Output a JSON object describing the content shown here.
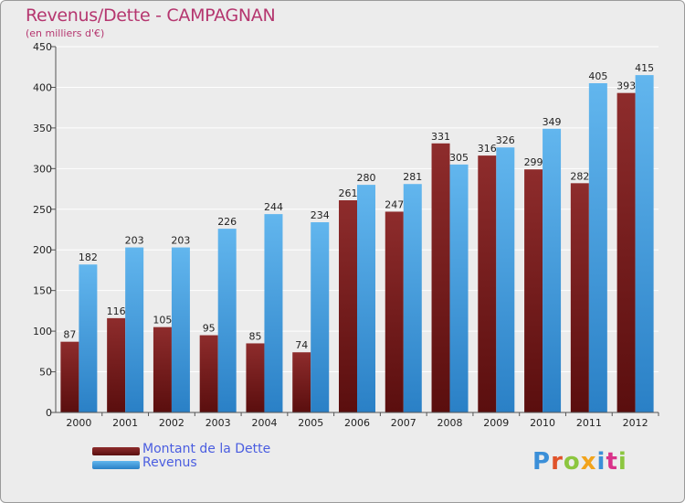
{
  "title": "Revenus/Dette - CAMPAGNAN",
  "subtitle": "(en milliers d'€)",
  "legend": {
    "debt_label": "Montant de la Dette",
    "revenue_label": "Revenus"
  },
  "logo": {
    "text": "Proxiti",
    "letters": [
      {
        "ch": "P",
        "color": "#3b8fd8"
      },
      {
        "ch": "r",
        "color": "#e0532a"
      },
      {
        "ch": "o",
        "color": "#8cc63f"
      },
      {
        "ch": "x",
        "color": "#f2a41c"
      },
      {
        "ch": "i",
        "color": "#3b8fd8"
      },
      {
        "ch": "t",
        "color": "#d9328a"
      },
      {
        "ch": "i",
        "color": "#8cc63f"
      }
    ]
  },
  "colors": {
    "debt_top": "#8e2c2c",
    "debt_bottom": "#5a0e0e",
    "revenue_top": "#62b6ee",
    "revenue_bottom": "#2a80c6",
    "grid": "#ffffff",
    "axis": "#555555",
    "title": "#b5366f"
  },
  "chart_data": {
    "type": "bar",
    "title": "Revenus/Dette - CAMPAGNAN",
    "subtitle": "(en milliers d'€)",
    "categories": [
      "2000",
      "2001",
      "2002",
      "2003",
      "2004",
      "2005",
      "2006",
      "2007",
      "2008",
      "2009",
      "2010",
      "2011",
      "2012"
    ],
    "series": [
      {
        "name": "Montant de la Dette",
        "values": [
          87,
          116,
          105,
          95,
          85,
          74,
          261,
          247,
          331,
          316,
          299,
          282,
          393
        ]
      },
      {
        "name": "Revenus",
        "values": [
          182,
          203,
          203,
          226,
          244,
          234,
          280,
          281,
          305,
          326,
          349,
          405,
          415
        ]
      }
    ],
    "ylim": [
      0,
      450
    ],
    "yticks": [
      0,
      50,
      100,
      150,
      200,
      250,
      300,
      350,
      400,
      450
    ],
    "grid": true,
    "legend_position": "bottom-left"
  }
}
